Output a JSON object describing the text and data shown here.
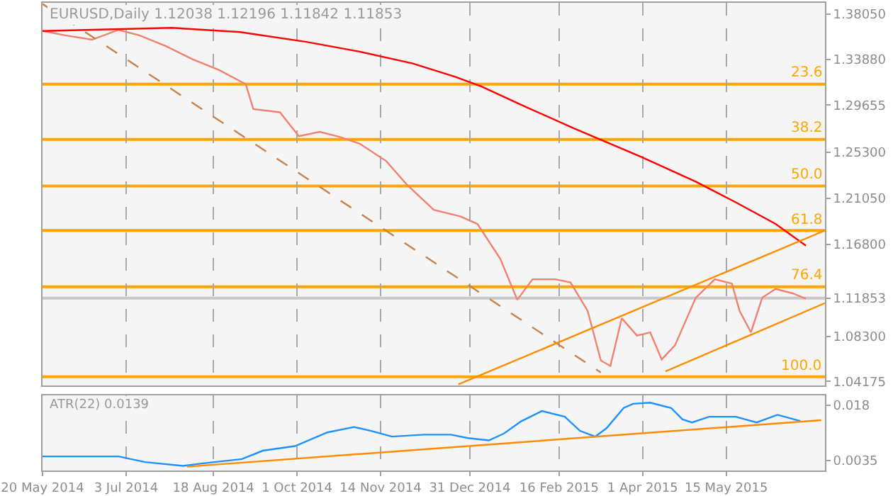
{
  "chart_data": [
    {
      "type": "line",
      "title": "EURUSD,Daily 1.12038 1.12196 1.11842 1.11853",
      "xlim": [
        "2014-05-20",
        "2015-07-06"
      ],
      "ylim": [
        1.038,
        1.391
      ],
      "xticks": [
        {
          "value": "2014-05-20",
          "label": null
        },
        {
          "value": "2014-07-03",
          "label": null
        },
        {
          "value": "2014-08-18",
          "label": null
        },
        {
          "value": "2014-10-01",
          "label": null
        },
        {
          "value": "2014-11-14",
          "label": null
        },
        {
          "value": "2014-12-31",
          "label": null
        },
        {
          "value": "2015-02-16",
          "label": null
        },
        {
          "value": "2015-04-01",
          "label": null
        },
        {
          "value": "2015-05-15",
          "label": null
        }
      ],
      "yticks": [
        {
          "value": 1.3805,
          "label": "1.38050"
        },
        {
          "value": 1.3388,
          "label": "1.33880"
        },
        {
          "value": 1.29655,
          "label": "1.29655"
        },
        {
          "value": 1.253,
          "label": "1.25300"
        },
        {
          "value": 1.2105,
          "label": "1.21050"
        },
        {
          "value": 1.168,
          "label": "1.16800"
        },
        1.11853,
        {
          "value": 1.083,
          "label": "1.08300"
        },
        1.04175
      ],
      "tick_labels": "y",
      "grid": "x",
      "series": [
        {
          "type": "line",
          "color": "#f08070",
          "x": [
            "2014-05-20",
            "2014-06-01",
            "2014-06-15",
            "2014-06-29",
            "2014-07-10",
            "2014-07-24",
            "2014-08-07",
            "2014-08-21",
            "2014-09-04",
            "2014-09-08",
            "2014-09-22",
            "2014-10-02",
            "2014-10-13",
            "2014-10-24",
            "2014-11-03",
            "2014-11-17",
            "2014-11-28",
            "2014-12-12",
            "2014-12-26",
            "2015-01-04",
            "2015-01-16",
            "2015-01-25",
            "2015-02-02",
            "2015-02-14",
            "2015-02-22",
            "2015-03-03",
            "2015-03-10",
            "2015-03-15",
            "2015-03-21",
            "2015-03-29",
            "2015-04-05",
            "2015-04-11",
            "2015-04-18",
            "2015-04-29",
            "2015-05-09",
            "2015-05-18",
            "2015-05-22",
            "2015-05-28",
            "2015-06-03",
            "2015-06-10",
            "2015-06-19",
            "2015-06-26"
          ],
          "values": [
            1.365,
            1.361,
            1.357,
            1.366,
            1.361,
            1.351,
            1.339,
            1.329,
            1.316,
            1.293,
            1.29,
            1.268,
            1.272,
            1.267,
            1.261,
            1.245,
            1.223,
            1.2,
            1.194,
            1.187,
            1.155,
            1.117,
            1.136,
            1.136,
            1.133,
            1.107,
            1.061,
            1.056,
            1.1,
            1.084,
            1.087,
            1.062,
            1.075,
            1.119,
            1.136,
            1.132,
            1.107,
            1.087,
            1.119,
            1.127,
            1.123,
            1.118
          ]
        },
        {
          "type": "line",
          "color": "#ff0000",
          "x": [
            "2014-05-20",
            "2014-07-27",
            "2014-09-01",
            "2014-10-06",
            "2014-11-03",
            "2014-12-01",
            "2014-12-23",
            "2015-01-06",
            "2015-01-27",
            "2015-02-24",
            "2015-03-31",
            "2015-04-29",
            "2015-05-20",
            "2015-06-10",
            "2015-06-26"
          ],
          "values": [
            1.365,
            1.368,
            1.364,
            1.355,
            1.346,
            1.335,
            1.323,
            1.314,
            1.297,
            1.275,
            1.249,
            1.226,
            1.207,
            1.187,
            1.167
          ]
        },
        {
          "type": "line",
          "color": "#c8824a",
          "line_style": "dashed",
          "x": [
            "2014-05-20",
            "2015-03-10"
          ],
          "values": [
            1.39,
            1.05
          ]
        },
        {
          "type": "line",
          "color": "#ff8c00",
          "x": [
            "2014-12-25",
            "2015-07-06"
          ],
          "values": [
            1.039,
            1.181
          ]
        },
        {
          "type": "line",
          "color": "#ff8c00",
          "x": [
            "2015-04-13",
            "2015-07-06"
          ],
          "values": [
            1.051,
            1.114
          ]
        }
      ],
      "ref_lines": [
        {
          "axis": "y",
          "value": 1.316,
          "color": "#ffa500"
        },
        {
          "axis": "y",
          "value": 1.265,
          "color": "#ffa500"
        },
        {
          "axis": "y",
          "value": 1.222,
          "color": "#ffa500"
        },
        {
          "axis": "y",
          "value": 1.181,
          "color": "#ffa500"
        },
        {
          "axis": "y",
          "value": 1.129,
          "color": "#ffa500"
        },
        {
          "axis": "y",
          "value": 1.046,
          "color": "#ffa500"
        },
        {
          "axis": "y",
          "value": 1.11853,
          "color": "#c8c8c8"
        }
      ],
      "annotations": [
        {
          "text": "23.6",
          "x": "2015-07-06",
          "y": 1.316
        },
        {
          "text": "38.2",
          "x": "2015-07-06",
          "y": 1.265
        },
        {
          "text": "50.0",
          "x": "2015-07-06",
          "y": 1.222
        },
        {
          "text": "61.8",
          "x": "2015-07-06",
          "y": 1.181
        },
        {
          "text": "76.4",
          "x": "2015-07-06",
          "y": 1.129
        },
        {
          "text": "100.0",
          "x": "2015-07-06",
          "y": 1.046
        }
      ]
    },
    {
      "type": "line",
      "title": "ATR(22) 0.0139",
      "xlim": [
        "2014-05-20",
        "2015-07-06"
      ],
      "ylim": [
        0.0009,
        0.0206
      ],
      "xticks": [
        {
          "value": "2014-05-20",
          "label": "20 May 2014"
        },
        {
          "value": "2014-07-03",
          "label": "3 Jul 2014"
        },
        {
          "value": "2014-08-18",
          "label": "18 Aug 2014"
        },
        {
          "value": "2014-10-01",
          "label": "1 Oct 2014"
        },
        {
          "value": "2014-11-14",
          "label": "14 Nov 2014"
        },
        {
          "value": "2014-12-31",
          "label": "31 Dec 2014"
        },
        {
          "value": "2015-02-16",
          "label": "16 Feb 2015"
        },
        {
          "value": "2015-04-01",
          "label": "1 Apr 2015"
        },
        {
          "value": "2015-05-15",
          "label": "15 May 2015"
        }
      ],
      "yticks": [
        0.018,
        0.0035
      ],
      "grid": "x",
      "series": [
        {
          "type": "line",
          "color": "#1e90ff",
          "x": [
            "2014-05-20",
            "2014-06-07",
            "2014-06-29",
            "2014-07-13",
            "2014-08-02",
            "2014-08-11",
            "2014-09-02",
            "2014-09-13",
            "2014-09-30",
            "2014-10-17",
            "2014-10-31",
            "2014-11-09",
            "2014-11-20",
            "2014-12-07",
            "2014-12-21",
            "2014-12-30",
            "2015-01-10",
            "2015-01-18",
            "2015-01-27",
            "2015-02-07",
            "2015-02-19",
            "2015-02-27",
            "2015-03-07",
            "2015-03-13",
            "2015-03-22",
            "2015-03-27",
            "2015-04-05",
            "2015-04-16",
            "2015-04-22",
            "2015-04-27",
            "2015-05-06",
            "2015-05-20",
            "2015-05-31",
            "2015-06-11",
            "2015-06-23"
          ],
          "values": [
            0.0046,
            0.0046,
            0.0046,
            0.0031,
            0.0021,
            0.0027,
            0.0039,
            0.0061,
            0.0073,
            0.0109,
            0.0123,
            0.0113,
            0.0098,
            0.0103,
            0.0103,
            0.0094,
            0.0088,
            0.0106,
            0.0138,
            0.0165,
            0.015,
            0.0113,
            0.0098,
            0.012,
            0.0173,
            0.0184,
            0.0187,
            0.0173,
            0.0143,
            0.0135,
            0.015,
            0.015,
            0.0135,
            0.0155,
            0.0139
          ]
        },
        {
          "type": "line",
          "color": "#ff8c00",
          "x": [
            "2014-08-04",
            "2015-07-04"
          ],
          "values": [
            0.0019,
            0.0141
          ]
        }
      ]
    }
  ]
}
